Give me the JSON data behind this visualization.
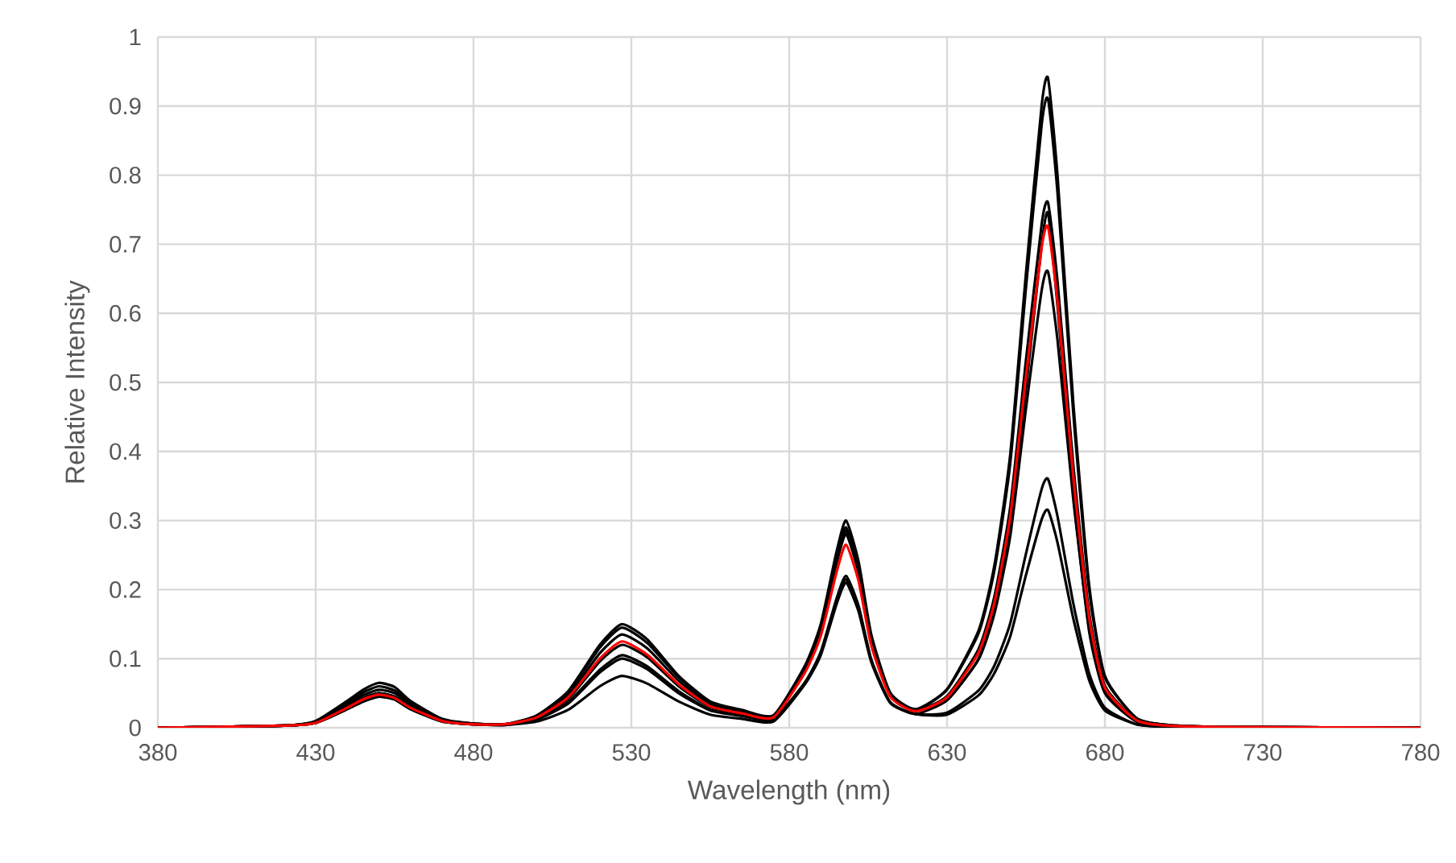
{
  "chart_data": {
    "type": "line",
    "xlabel": "Wavelength (nm)",
    "ylabel": "Relative Intensity",
    "x": [
      380,
      420,
      430,
      440,
      445,
      450,
      455,
      460,
      470,
      480,
      490,
      500,
      510,
      520,
      527,
      535,
      545,
      555,
      565,
      575,
      585,
      590,
      595,
      598,
      602,
      606,
      612,
      620,
      630,
      640,
      645,
      650,
      655,
      660,
      662,
      665,
      670,
      675,
      680,
      690,
      700,
      720,
      780
    ],
    "series": [
      {
        "color": "#000000",
        "values": [
          0,
          0.003,
          0.01,
          0.039,
          0.055,
          0.065,
          0.059,
          0.039,
          0.013,
          0.006,
          0.005,
          0.018,
          0.053,
          0.12,
          0.15,
          0.128,
          0.075,
          0.038,
          0.026,
          0.018,
          0.09,
          0.15,
          0.255,
          0.3,
          0.24,
          0.135,
          0.051,
          0.027,
          0.056,
          0.141,
          0.235,
          0.395,
          0.658,
          0.902,
          0.94,
          0.799,
          0.47,
          0.207,
          0.075,
          0.014,
          0.004,
          0.001,
          0
        ]
      },
      {
        "color": "#000000",
        "values": [
          0,
          0.003,
          0.009,
          0.036,
          0.051,
          0.06,
          0.054,
          0.036,
          0.012,
          0.006,
          0.005,
          0.017,
          0.051,
          0.116,
          0.145,
          0.123,
          0.073,
          0.036,
          0.025,
          0.017,
          0.087,
          0.145,
          0.247,
          0.29,
          0.232,
          0.131,
          0.049,
          0.026,
          0.055,
          0.137,
          0.228,
          0.382,
          0.637,
          0.874,
          0.91,
          0.774,
          0.455,
          0.2,
          0.073,
          0.014,
          0.004,
          0.001,
          0
        ]
      },
      {
        "color": "#000000",
        "values": [
          0,
          0.003,
          0.008,
          0.03,
          0.043,
          0.05,
          0.045,
          0.03,
          0.01,
          0.005,
          0.005,
          0.014,
          0.042,
          0.096,
          0.12,
          0.102,
          0.06,
          0.03,
          0.02,
          0.014,
          0.084,
          0.14,
          0.238,
          0.28,
          0.224,
          0.126,
          0.048,
          0.025,
          0.046,
          0.114,
          0.19,
          0.319,
          0.532,
          0.73,
          0.76,
          0.646,
          0.38,
          0.167,
          0.061,
          0.011,
          0.003,
          0.001,
          0
        ]
      },
      {
        "color": "#000000",
        "values": [
          0,
          0.003,
          0.009,
          0.033,
          0.047,
          0.055,
          0.05,
          0.033,
          0.011,
          0.006,
          0.005,
          0.016,
          0.047,
          0.108,
          0.135,
          0.115,
          0.068,
          0.034,
          0.023,
          0.016,
          0.086,
          0.143,
          0.242,
          0.285,
          0.228,
          0.128,
          0.048,
          0.026,
          0.04,
          0.1,
          0.17,
          0.29,
          0.49,
          0.7,
          0.745,
          0.61,
          0.34,
          0.14,
          0.05,
          0.009,
          0.003,
          0.001,
          0
        ]
      },
      {
        "color": "#000000",
        "values": [
          0,
          0.003,
          0.008,
          0.03,
          0.043,
          0.05,
          0.045,
          0.03,
          0.01,
          0.005,
          0.005,
          0.013,
          0.037,
          0.084,
          0.105,
          0.089,
          0.053,
          0.026,
          0.018,
          0.013,
          0.066,
          0.11,
          0.187,
          0.22,
          0.176,
          0.099,
          0.037,
          0.02,
          0.04,
          0.099,
          0.165,
          0.277,
          0.462,
          0.634,
          0.66,
          0.561,
          0.33,
          0.145,
          0.053,
          0.01,
          0.003,
          0.001,
          0
        ]
      },
      {
        "color": "#000000",
        "values": [
          0,
          0.003,
          0.007,
          0.027,
          0.038,
          0.045,
          0.041,
          0.027,
          0.009,
          0.005,
          0.004,
          0.009,
          0.026,
          0.06,
          0.075,
          0.064,
          0.038,
          0.019,
          0.013,
          0.009,
          0.063,
          0.105,
          0.179,
          0.21,
          0.168,
          0.095,
          0.036,
          0.02,
          0.022,
          0.054,
          0.09,
          0.151,
          0.252,
          0.346,
          0.36,
          0.306,
          0.18,
          0.079,
          0.029,
          0.005,
          0.002,
          0.001,
          0
        ]
      },
      {
        "color": "#000000",
        "values": [
          0,
          0.003,
          0.007,
          0.027,
          0.038,
          0.045,
          0.041,
          0.027,
          0.009,
          0.005,
          0.004,
          0.012,
          0.035,
          0.08,
          0.1,
          0.085,
          0.05,
          0.025,
          0.017,
          0.012,
          0.065,
          0.108,
          0.183,
          0.215,
          0.172,
          0.097,
          0.037,
          0.02,
          0.019,
          0.047,
          0.079,
          0.132,
          0.221,
          0.302,
          0.315,
          0.268,
          0.158,
          0.069,
          0.025,
          0.005,
          0.001,
          0.001,
          0
        ]
      },
      {
        "color": "#ff0000",
        "values": [
          0,
          0.003,
          0.007,
          0.029,
          0.041,
          0.048,
          0.043,
          0.029,
          0.01,
          0.005,
          0.005,
          0.015,
          0.044,
          0.1,
          0.125,
          0.106,
          0.063,
          0.031,
          0.021,
          0.015,
          0.08,
          0.133,
          0.225,
          0.265,
          0.212,
          0.119,
          0.045,
          0.024,
          0.044,
          0.109,
          0.181,
          0.305,
          0.508,
          0.696,
          0.725,
          0.616,
          0.363,
          0.16,
          0.058,
          0.011,
          0.003,
          0.001,
          0
        ]
      }
    ],
    "xlim": [
      380,
      780
    ],
    "xticks": [
      380,
      430,
      480,
      530,
      580,
      630,
      680,
      730,
      780
    ],
    "ylim": [
      0,
      1
    ],
    "yticks": [
      0,
      0.1,
      0.2,
      0.3,
      0.4,
      0.5,
      0.6,
      0.7,
      0.8,
      0.9,
      1
    ],
    "grid": true,
    "marker": "none",
    "line_style": "solid"
  }
}
